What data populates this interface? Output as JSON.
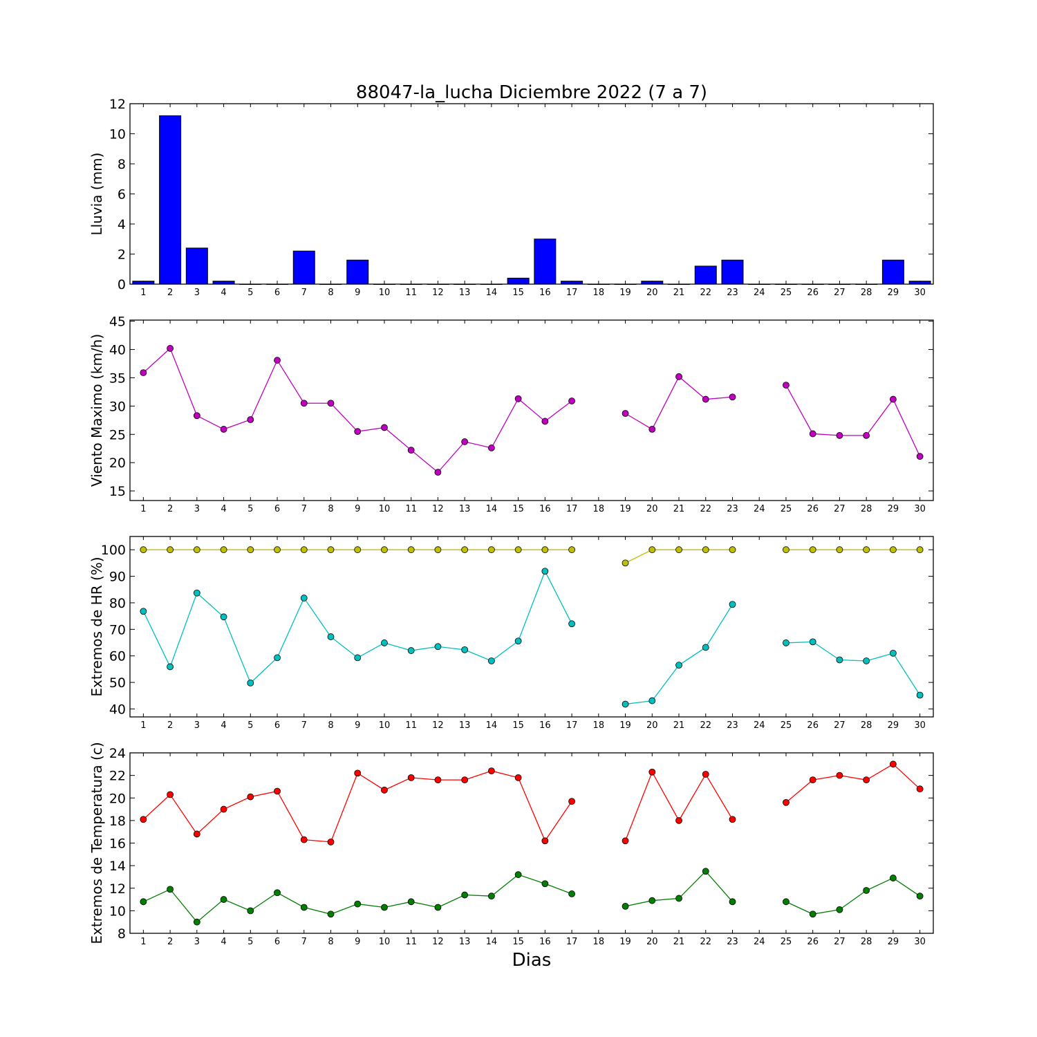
{
  "title": "88047-la_lucha Diciembre 2022  (7 a 7)",
  "xlabel": "Dias",
  "chart_data": [
    {
      "type": "bar",
      "ylabel": "Lluvia (mm)",
      "ylim": [
        0,
        12
      ],
      "yticks": [
        0,
        2,
        4,
        6,
        8,
        10,
        12
      ],
      "x": [
        1,
        2,
        3,
        4,
        5,
        6,
        7,
        8,
        9,
        10,
        11,
        12,
        13,
        14,
        15,
        16,
        17,
        18,
        19,
        20,
        21,
        22,
        23,
        24,
        25,
        26,
        27,
        28,
        29,
        30
      ],
      "series": [
        {
          "color": "#0000ff",
          "values": [
            0.2,
            11.2,
            2.4,
            0.2,
            0,
            0,
            2.2,
            0,
            1.6,
            0,
            0,
            0,
            0,
            0,
            0.4,
            3.0,
            0.2,
            0,
            0,
            0.2,
            0,
            1.2,
            1.6,
            0,
            0,
            0,
            0,
            0,
            1.6,
            0.2
          ]
        }
      ]
    },
    {
      "type": "line",
      "ylabel": "Viento Maximo (km/h)",
      "ylim": [
        13.3,
        45.2
      ],
      "yticks": [
        15,
        20,
        25,
        30,
        35,
        40,
        45
      ],
      "x": [
        1,
        2,
        3,
        4,
        5,
        6,
        7,
        8,
        9,
        10,
        11,
        12,
        13,
        14,
        15,
        16,
        17,
        18,
        19,
        20,
        21,
        22,
        23,
        24,
        25,
        26,
        27,
        28,
        29,
        30
      ],
      "series": [
        {
          "color": "#bf00bf",
          "values": [
            35.9,
            40.2,
            28.3,
            25.9,
            27.6,
            38.1,
            30.5,
            30.5,
            25.5,
            26.2,
            22.2,
            18.3,
            23.7,
            22.6,
            31.3,
            27.3,
            30.9,
            null,
            28.7,
            25.9,
            35.2,
            31.2,
            31.6,
            null,
            33.7,
            25.1,
            24.8,
            24.8,
            31.2,
            21.1
          ]
        }
      ]
    },
    {
      "type": "line",
      "ylabel": "Extremos de HR (%)",
      "ylim": [
        37,
        105
      ],
      "yticks": [
        40,
        50,
        60,
        70,
        80,
        90,
        100
      ],
      "x": [
        1,
        2,
        3,
        4,
        5,
        6,
        7,
        8,
        9,
        10,
        11,
        12,
        13,
        14,
        15,
        16,
        17,
        18,
        19,
        20,
        21,
        22,
        23,
        24,
        25,
        26,
        27,
        28,
        29,
        30
      ],
      "series": [
        {
          "color": "#bfbf00",
          "values": [
            100,
            100,
            100,
            100,
            100,
            100,
            100,
            100,
            100,
            100,
            100,
            100,
            100,
            100,
            100,
            100,
            100,
            null,
            95,
            100,
            100,
            100,
            100,
            null,
            100,
            100,
            100,
            100,
            100,
            100
          ]
        },
        {
          "color": "#00bfbf",
          "values": [
            76.8,
            55.9,
            83.7,
            74.7,
            49.8,
            59.3,
            81.8,
            67.2,
            59.3,
            64.9,
            62.0,
            63.5,
            62.3,
            58.1,
            65.6,
            91.9,
            72.1,
            null,
            41.8,
            43.1,
            56.5,
            63.2,
            79.4,
            null,
            64.9,
            65.3,
            58.5,
            58.1,
            61.0,
            45.2
          ]
        }
      ]
    },
    {
      "type": "line",
      "ylabel": "Extremos de Temperatura (c)",
      "ylim": [
        8,
        24
      ],
      "yticks": [
        8,
        10,
        12,
        14,
        16,
        18,
        20,
        22,
        24
      ],
      "x": [
        1,
        2,
        3,
        4,
        5,
        6,
        7,
        8,
        9,
        10,
        11,
        12,
        13,
        14,
        15,
        16,
        17,
        18,
        19,
        20,
        21,
        22,
        23,
        24,
        25,
        26,
        27,
        28,
        29,
        30
      ],
      "series": [
        {
          "color": "#ff0000",
          "values": [
            18.1,
            20.3,
            16.8,
            19.0,
            20.1,
            20.6,
            16.3,
            16.1,
            22.2,
            20.7,
            21.8,
            21.6,
            21.6,
            22.4,
            21.8,
            16.2,
            19.7,
            null,
            16.2,
            22.3,
            18.0,
            22.1,
            18.1,
            null,
            19.6,
            21.6,
            22.0,
            21.6,
            23.0,
            20.8
          ]
        },
        {
          "color": "#007f00",
          "values": [
            10.8,
            11.9,
            9.0,
            11.0,
            10.0,
            11.6,
            10.3,
            9.7,
            10.6,
            10.3,
            10.8,
            10.3,
            11.4,
            11.3,
            13.2,
            12.4,
            11.5,
            null,
            10.4,
            10.9,
            11.1,
            13.5,
            10.8,
            null,
            10.8,
            9.7,
            10.1,
            11.8,
            12.9,
            11.3
          ]
        }
      ]
    }
  ]
}
